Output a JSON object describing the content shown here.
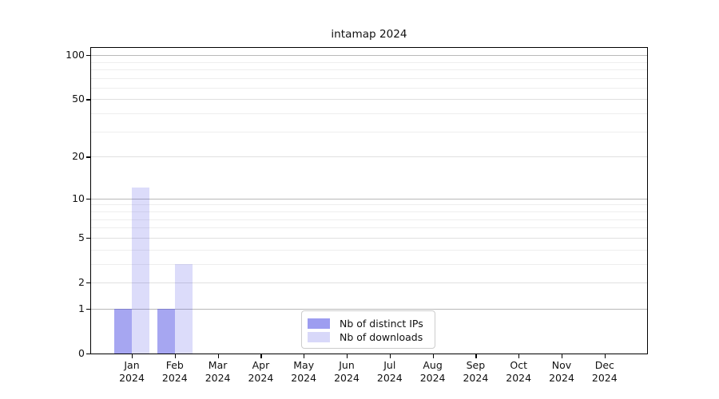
{
  "title": "intamap 2024",
  "chart_data": {
    "type": "bar",
    "title": "intamap 2024",
    "categories": [
      "Jan",
      "Feb",
      "Mar",
      "Apr",
      "May",
      "Jun",
      "Jul",
      "Aug",
      "Sep",
      "Oct",
      "Nov",
      "Dec"
    ],
    "category_year": "2024",
    "series": [
      {
        "name": "Nb of distinct IPs",
        "base_color": "#3c3ce1",
        "alpha": 0.46,
        "values": [
          1,
          1,
          0,
          0,
          0,
          0,
          0,
          0,
          0,
          0,
          0,
          0
        ]
      },
      {
        "name": "Nb of downloads",
        "base_color": "#3c3ce1",
        "alpha": 0.18,
        "values": [
          12,
          3,
          0,
          0,
          0,
          0,
          0,
          0,
          0,
          0,
          0,
          0
        ]
      }
    ],
    "yscale": "log1p",
    "ylim": [
      0,
      112
    ],
    "yticks": [
      0,
      1,
      2,
      5,
      10,
      20,
      50,
      100
    ],
    "yticks_decade": [
      1,
      10,
      100
    ],
    "yticks_minor": [
      3,
      4,
      6,
      7,
      8,
      9,
      30,
      40,
      60,
      70,
      80,
      90
    ],
    "grid": true,
    "legend_position": "lower center inside",
    "colors": {
      "grid_decade": "#b9b9b9",
      "grid_sub": "#e0e0e0",
      "grid_minor": "#eeeeee",
      "axis": "#000000",
      "background": "#ffffff"
    }
  }
}
